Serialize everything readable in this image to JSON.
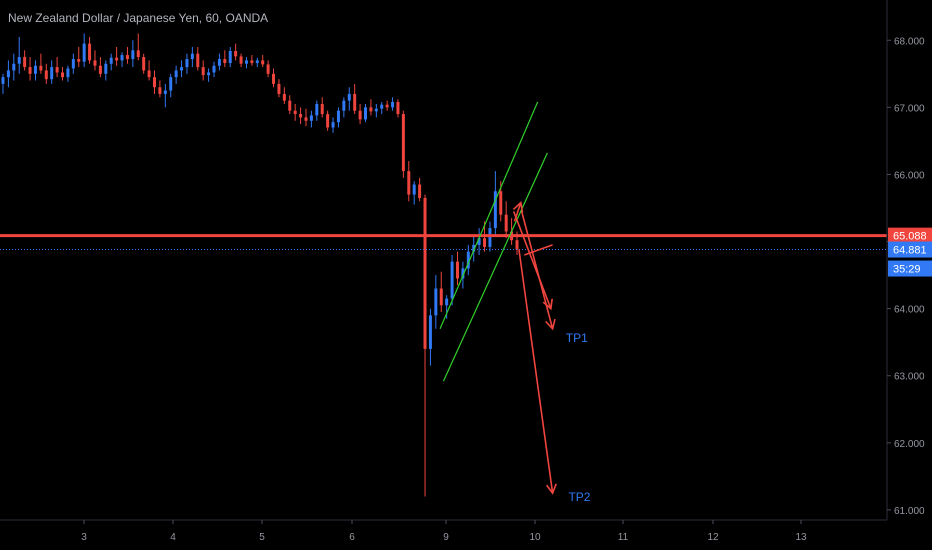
{
  "header": {
    "title": "New Zealand Dollar / Japanese Yen, 60, OANDA"
  },
  "colors": {
    "background": "#000000",
    "up": "#3179f5",
    "down": "#f0453e",
    "channel": "#2fd22a",
    "level": "#f0453e",
    "arrow": "#f0453e",
    "current_line": "#3179f5",
    "tp_label": "#3179f5",
    "axis_text": "#9598a1"
  },
  "chart_data": {
    "type": "candlestick",
    "x_unit": "day",
    "x_ticks": [
      3,
      4,
      5,
      6,
      9,
      10,
      11,
      12,
      13
    ],
    "y_ticks": [
      "61.000",
      "62.000",
      "63.000",
      "64.000",
      "65.000",
      "66.000",
      "67.000",
      "68.000"
    ],
    "ylim": [
      60.85,
      68.6
    ],
    "key_level": {
      "value": 65.088,
      "label": "65.088"
    },
    "last_price": {
      "value": 64.881,
      "label": "64.881"
    },
    "countdown": "35:29",
    "candles": [
      [
        67.35,
        67.5,
        67.2,
        67.45
      ],
      [
        67.45,
        67.7,
        67.3,
        67.55
      ],
      [
        67.55,
        67.8,
        67.4,
        67.65
      ],
      [
        67.65,
        68.05,
        67.5,
        67.75
      ],
      [
        67.75,
        67.85,
        67.55,
        67.6
      ],
      [
        67.6,
        67.75,
        67.4,
        67.5
      ],
      [
        67.5,
        67.7,
        67.4,
        67.62
      ],
      [
        67.62,
        67.8,
        67.5,
        67.55
      ],
      [
        67.55,
        67.65,
        67.35,
        67.42
      ],
      [
        67.42,
        67.7,
        67.35,
        67.6
      ],
      [
        67.6,
        67.75,
        67.45,
        67.52
      ],
      [
        67.52,
        67.6,
        67.4,
        67.45
      ],
      [
        67.45,
        67.62,
        67.38,
        67.58
      ],
      [
        67.58,
        67.8,
        67.5,
        67.72
      ],
      [
        67.72,
        67.9,
        67.6,
        67.68
      ],
      [
        67.68,
        68.1,
        67.6,
        67.95
      ],
      [
        67.95,
        68.05,
        67.65,
        67.7
      ],
      [
        67.7,
        67.85,
        67.55,
        67.62
      ],
      [
        67.62,
        67.75,
        67.45,
        67.5
      ],
      [
        67.5,
        67.7,
        67.4,
        67.65
      ],
      [
        67.65,
        67.8,
        67.55,
        67.74
      ],
      [
        67.74,
        67.9,
        67.62,
        67.7
      ],
      [
        67.7,
        67.82,
        67.6,
        67.78
      ],
      [
        67.78,
        67.9,
        67.65,
        67.72
      ],
      [
        67.72,
        68.0,
        67.6,
        67.85
      ],
      [
        67.85,
        68.1,
        67.7,
        67.75
      ],
      [
        67.75,
        67.8,
        67.5,
        67.55
      ],
      [
        67.55,
        67.7,
        67.4,
        67.45
      ],
      [
        67.45,
        67.55,
        67.2,
        67.3
      ],
      [
        67.3,
        67.4,
        67.15,
        67.2
      ],
      [
        67.2,
        67.35,
        67.0,
        67.25
      ],
      [
        67.25,
        67.5,
        67.15,
        67.45
      ],
      [
        67.45,
        67.62,
        67.35,
        67.55
      ],
      [
        67.55,
        67.7,
        67.45,
        67.6
      ],
      [
        67.6,
        67.8,
        67.5,
        67.72
      ],
      [
        67.72,
        67.9,
        67.6,
        67.8
      ],
      [
        67.8,
        67.9,
        67.55,
        67.6
      ],
      [
        67.6,
        67.7,
        67.4,
        67.48
      ],
      [
        67.48,
        67.58,
        67.38,
        67.52
      ],
      [
        67.52,
        67.68,
        67.45,
        67.62
      ],
      [
        67.62,
        67.8,
        67.55,
        67.72
      ],
      [
        67.72,
        67.85,
        67.6,
        67.66
      ],
      [
        67.66,
        67.9,
        67.6,
        67.84
      ],
      [
        67.84,
        67.95,
        67.7,
        67.76
      ],
      [
        67.76,
        67.8,
        67.6,
        67.65
      ],
      [
        67.65,
        67.75,
        67.58,
        67.7
      ],
      [
        67.7,
        67.78,
        67.62,
        67.66
      ],
      [
        67.66,
        67.74,
        67.6,
        67.7
      ],
      [
        67.7,
        67.78,
        67.6,
        67.64
      ],
      [
        67.64,
        67.7,
        67.45,
        67.5
      ],
      [
        67.5,
        67.58,
        67.3,
        67.35
      ],
      [
        67.35,
        67.42,
        67.15,
        67.2
      ],
      [
        67.2,
        67.3,
        67.05,
        67.1
      ],
      [
        67.1,
        67.18,
        66.9,
        66.95
      ],
      [
        66.95,
        67.05,
        66.8,
        66.9
      ],
      [
        66.9,
        67.0,
        66.75,
        66.85
      ],
      [
        66.85,
        66.98,
        66.72,
        66.8
      ],
      [
        66.8,
        66.95,
        66.7,
        66.88
      ],
      [
        66.88,
        67.1,
        66.8,
        67.05
      ],
      [
        67.05,
        67.15,
        66.85,
        66.9
      ],
      [
        66.9,
        66.95,
        66.65,
        66.7
      ],
      [
        66.7,
        66.85,
        66.62,
        66.78
      ],
      [
        66.78,
        67.0,
        66.7,
        66.95
      ],
      [
        66.95,
        67.15,
        66.85,
        67.1
      ],
      [
        67.1,
        67.3,
        66.95,
        67.2
      ],
      [
        67.2,
        67.35,
        66.9,
        66.95
      ],
      [
        66.95,
        67.05,
        66.75,
        66.82
      ],
      [
        66.82,
        67.05,
        66.78,
        67.0
      ],
      [
        67.0,
        67.12,
        66.88,
        66.94
      ],
      [
        66.94,
        67.05,
        66.85,
        66.98
      ],
      [
        66.98,
        67.08,
        66.9,
        67.04
      ],
      [
        67.04,
        67.1,
        66.95,
        67.0
      ],
      [
        67.0,
        67.15,
        66.95,
        67.08
      ],
      [
        67.08,
        67.12,
        66.85,
        66.9
      ],
      [
        66.9,
        66.95,
        65.95,
        66.05
      ],
      [
        66.05,
        66.2,
        65.6,
        65.7
      ],
      [
        65.7,
        65.9,
        65.55,
        65.85
      ],
      [
        65.85,
        65.95,
        65.6,
        65.65
      ],
      [
        65.65,
        65.7,
        61.2,
        63.4
      ],
      [
        63.4,
        64.0,
        63.15,
        63.9
      ],
      [
        63.9,
        64.5,
        63.7,
        64.3
      ],
      [
        64.3,
        64.55,
        63.95,
        64.05
      ],
      [
        64.05,
        64.2,
        63.85,
        64.15
      ],
      [
        64.15,
        64.8,
        64.05,
        64.7
      ],
      [
        64.7,
        64.85,
        64.35,
        64.45
      ],
      [
        64.45,
        64.7,
        64.3,
        64.6
      ],
      [
        64.6,
        64.95,
        64.5,
        64.85
      ],
      [
        64.85,
        65.1,
        64.7,
        64.95
      ],
      [
        64.95,
        65.2,
        64.8,
        65.05
      ],
      [
        65.05,
        65.3,
        64.85,
        64.92
      ],
      [
        64.92,
        65.3,
        64.85,
        65.2
      ],
      [
        65.2,
        66.05,
        65.1,
        65.75
      ],
      [
        65.75,
        65.9,
        65.3,
        65.4
      ],
      [
        65.4,
        65.6,
        65.05,
        65.15
      ],
      [
        65.15,
        65.35,
        64.95,
        65.02
      ],
      [
        65.02,
        65.15,
        64.8,
        64.88
      ]
    ],
    "channel_lines": [
      {
        "from": {
          "x": 8.81,
          "y": 63.7
        },
        "to": {
          "x": 10.03,
          "y": 67.08
        }
      },
      {
        "from": {
          "x": 8.92,
          "y": 62.92
        },
        "to": {
          "x": 10.14,
          "y": 66.32
        }
      }
    ],
    "arrows": [
      {
        "from": {
          "x": 9.76,
          "y": 65.45
        },
        "to": {
          "x": 10.18,
          "y": 64.0
        },
        "head": "down-right"
      },
      {
        "from": {
          "x": 9.88,
          "y": 64.8
        },
        "to": {
          "x": 10.2,
          "y": 64.95
        },
        "head": "none"
      },
      {
        "from": {
          "x": 9.85,
          "y": 65.45
        },
        "to": {
          "x": 10.2,
          "y": 63.7
        },
        "head": "tp1"
      },
      {
        "from": {
          "x": 9.82,
          "y": 64.88
        },
        "to": {
          "x": 10.2,
          "y": 61.25
        },
        "head": "tp2"
      },
      {
        "from": {
          "x": 9.77,
          "y": 65.3
        },
        "to": {
          "x": 9.84,
          "y": 65.58
        },
        "head": "up"
      }
    ],
    "targets": [
      {
        "label": "TP1",
        "x": 10.35,
        "y": 63.5
      },
      {
        "label": "TP2",
        "x": 10.38,
        "y": 61.13
      }
    ]
  }
}
